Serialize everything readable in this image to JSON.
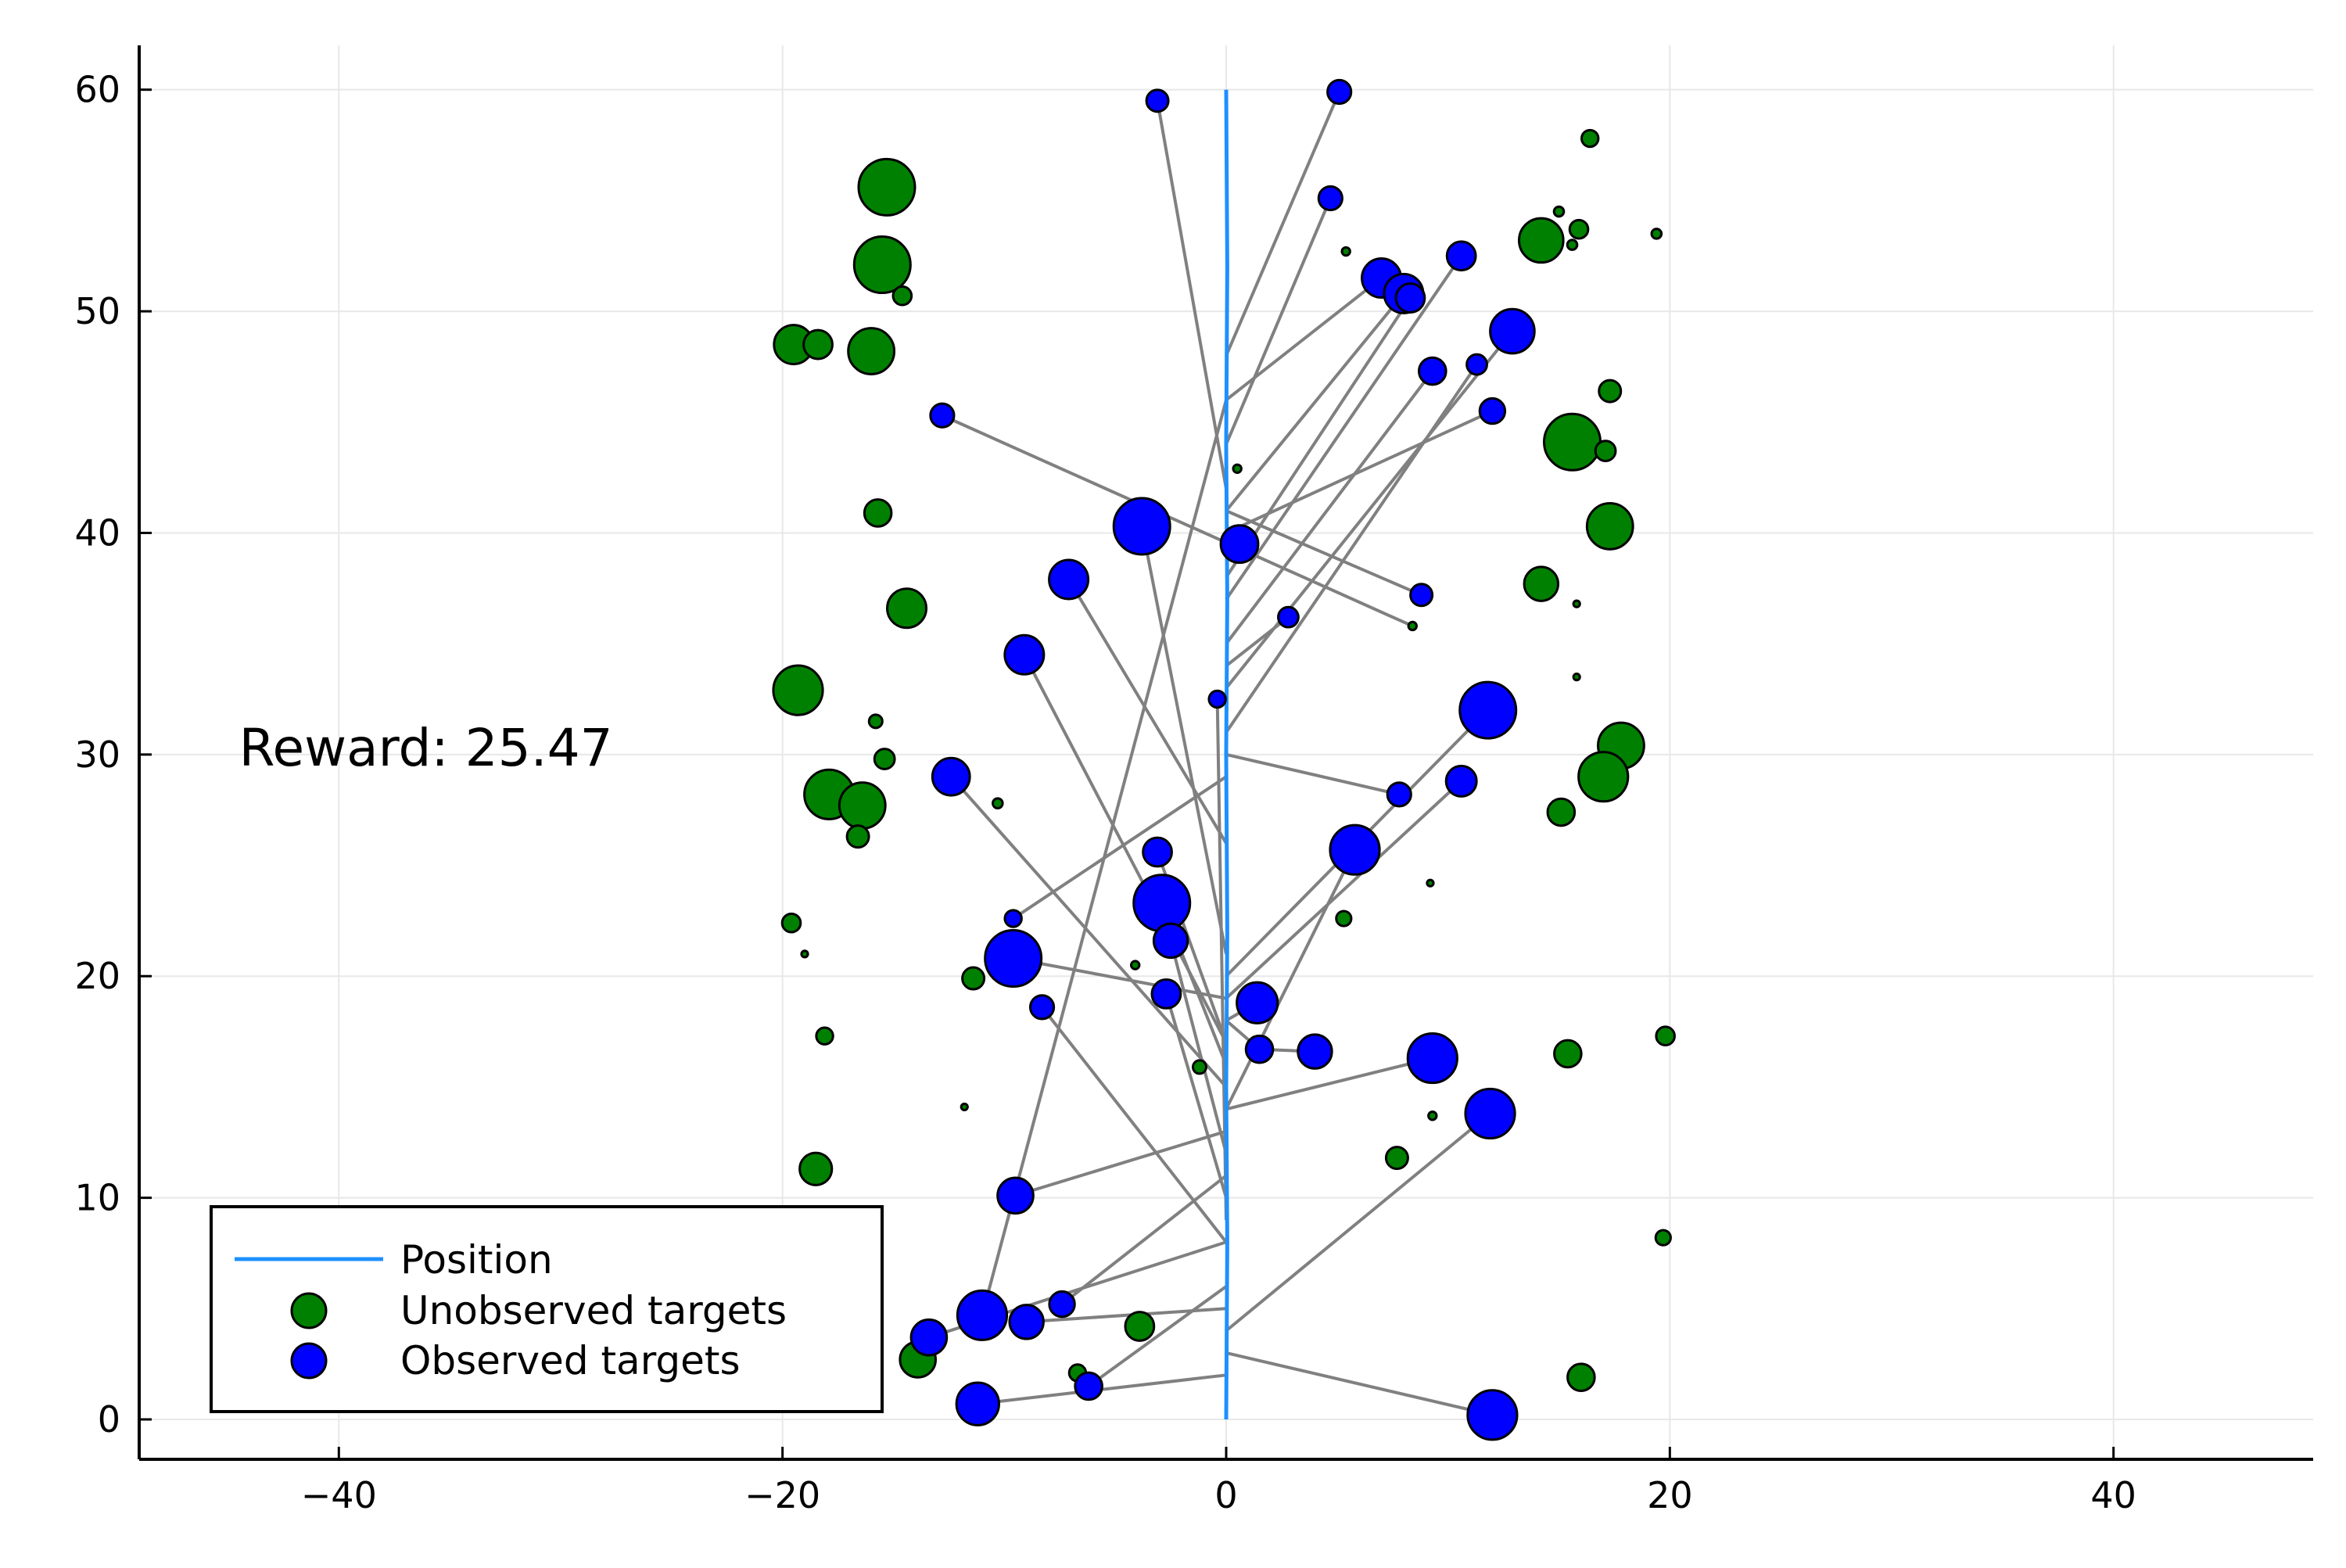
{
  "chart_data": {
    "type": "scatter",
    "title": "",
    "xlabel": "",
    "ylabel": "",
    "xlim": [
      -49,
      49
    ],
    "ylim": [
      -1.8,
      62
    ],
    "grid": true,
    "legend_placement": "bottom-left",
    "x_ticks": [
      -40,
      -20,
      0,
      20,
      40
    ],
    "x_tick_labels": [
      "−40",
      "−20",
      "0",
      "20",
      "40"
    ],
    "y_ticks": [
      0,
      10,
      20,
      30,
      40,
      50,
      60
    ],
    "y_tick_labels": [
      "0",
      "10",
      "20",
      "30",
      "40",
      "50",
      "60"
    ],
    "annotation": {
      "text": "Reward: 25.47",
      "x": -44.5,
      "y": 29.5
    },
    "colors": {
      "position": "#1e90ff",
      "unobserved": "#008000",
      "observed": "#0000ff",
      "link": "#808080",
      "grid": "#e8e8e8"
    },
    "series": [
      {
        "name": "Position",
        "kind": "line",
        "x": [
          0,
          0.05,
          0,
          0.05,
          0,
          0.05,
          0,
          0.05,
          0
        ],
        "y": [
          0,
          8,
          15,
          22,
          30,
          37,
          44,
          52,
          60
        ]
      },
      {
        "name": "Unobserved targets",
        "kind": "scatter",
        "points": [
          {
            "x": -15.3,
            "y": 55.6,
            "s": 3.0
          },
          {
            "x": -15.5,
            "y": 52.1,
            "s": 3.0
          },
          {
            "x": -14.6,
            "y": 50.7,
            "s": 0.8
          },
          {
            "x": -19.5,
            "y": 48.5,
            "s": 2.0
          },
          {
            "x": -18.4,
            "y": 48.5,
            "s": 1.4
          },
          {
            "x": -16.0,
            "y": 48.2,
            "s": 2.4
          },
          {
            "x": -15.7,
            "y": 40.9,
            "s": 1.3
          },
          {
            "x": -14.4,
            "y": 36.6,
            "s": 2.0
          },
          {
            "x": -19.3,
            "y": 32.9,
            "s": 2.6
          },
          {
            "x": -15.8,
            "y": 31.5,
            "s": 0.5
          },
          {
            "x": -15.4,
            "y": 29.8,
            "s": 0.9
          },
          {
            "x": -17.9,
            "y": 28.2,
            "s": 2.6
          },
          {
            "x": -16.4,
            "y": 27.7,
            "s": 2.4
          },
          {
            "x": -16.6,
            "y": 26.3,
            "s": 1.0
          },
          {
            "x": -10.3,
            "y": 27.8,
            "s": 0.3
          },
          {
            "x": -19.6,
            "y": 22.4,
            "s": 0.8
          },
          {
            "x": -19.0,
            "y": 21.0,
            "s": 0.1
          },
          {
            "x": -11.4,
            "y": 19.9,
            "s": 1.0
          },
          {
            "x": -18.1,
            "y": 17.3,
            "s": 0.7
          },
          {
            "x": -11.8,
            "y": 14.1,
            "s": 0.1
          },
          {
            "x": -18.5,
            "y": 11.3,
            "s": 1.6
          },
          {
            "x": -13.9,
            "y": 2.7,
            "s": 1.8
          },
          {
            "x": -6.7,
            "y": 2.1,
            "s": 0.7
          },
          {
            "x": -3.9,
            "y": 4.2,
            "s": 1.4
          },
          {
            "x": -4.1,
            "y": 20.5,
            "s": 0.2
          },
          {
            "x": -1.2,
            "y": 15.9,
            "s": 0.5
          },
          {
            "x": 0.5,
            "y": 42.9,
            "s": 0.2
          },
          {
            "x": 5.3,
            "y": 22.6,
            "s": 0.6
          },
          {
            "x": 5.4,
            "y": 52.7,
            "s": 0.2
          },
          {
            "x": 16.4,
            "y": 57.8,
            "s": 0.7
          },
          {
            "x": 15.0,
            "y": 54.5,
            "s": 0.3
          },
          {
            "x": 15.9,
            "y": 53.7,
            "s": 0.8
          },
          {
            "x": 15.6,
            "y": 53.0,
            "s": 0.3
          },
          {
            "x": 19.4,
            "y": 53.5,
            "s": 0.3
          },
          {
            "x": 14.2,
            "y": 53.2,
            "s": 2.3
          },
          {
            "x": 15.6,
            "y": 44.1,
            "s": 3.0
          },
          {
            "x": 17.1,
            "y": 43.7,
            "s": 0.9
          },
          {
            "x": 17.3,
            "y": 46.4,
            "s": 1.0
          },
          {
            "x": 17.3,
            "y": 40.3,
            "s": 2.4
          },
          {
            "x": 14.2,
            "y": 37.7,
            "s": 1.7
          },
          {
            "x": 15.8,
            "y": 36.8,
            "s": 0.1
          },
          {
            "x": 8.4,
            "y": 35.8,
            "s": 0.2
          },
          {
            "x": 15.8,
            "y": 33.5,
            "s": 0.1
          },
          {
            "x": 17.8,
            "y": 30.4,
            "s": 2.4
          },
          {
            "x": 17.0,
            "y": 29.0,
            "s": 2.6
          },
          {
            "x": 15.1,
            "y": 27.4,
            "s": 1.3
          },
          {
            "x": 9.2,
            "y": 24.2,
            "s": 0.1
          },
          {
            "x": 19.8,
            "y": 17.3,
            "s": 0.8
          },
          {
            "x": 15.4,
            "y": 16.5,
            "s": 1.3
          },
          {
            "x": 9.3,
            "y": 13.7,
            "s": 0.2
          },
          {
            "x": 7.7,
            "y": 11.8,
            "s": 1.0
          },
          {
            "x": 19.7,
            "y": 8.2,
            "s": 0.6
          },
          {
            "x": 16.0,
            "y": 1.9,
            "s": 1.3
          }
        ]
      },
      {
        "name": "Observed targets",
        "kind": "scatter",
        "points": [
          {
            "x": -3.1,
            "y": 59.5,
            "s": 1.0,
            "lx": 0,
            "ly": 42
          },
          {
            "x": 5.1,
            "y": 59.9,
            "s": 1.1,
            "lx": 0,
            "ly": 48
          },
          {
            "x": 4.7,
            "y": 55.1,
            "s": 1.1,
            "lx": 0,
            "ly": 44
          },
          {
            "x": 7.0,
            "y": 51.5,
            "s": 2.0,
            "lx": 0,
            "ly": 46
          },
          {
            "x": 8.0,
            "y": 50.8,
            "s": 2.0,
            "lx": 0,
            "ly": 41
          },
          {
            "x": 8.3,
            "y": 50.6,
            "s": 1.4,
            "lx": 0,
            "ly": 38
          },
          {
            "x": 10.6,
            "y": 52.5,
            "s": 1.4,
            "lx": 0,
            "ly": 37
          },
          {
            "x": 12.9,
            "y": 49.1,
            "s": 2.3,
            "lx": 0,
            "ly": 33
          },
          {
            "x": 9.3,
            "y": 47.3,
            "s": 1.3,
            "lx": 0,
            "ly": 35
          },
          {
            "x": 11.3,
            "y": 47.6,
            "s": 0.9,
            "lx": 0,
            "ly": 31
          },
          {
            "x": 12.0,
            "y": 45.5,
            "s": 1.2,
            "lx": 0,
            "ly": 40
          },
          {
            "x": -12.8,
            "y": 45.3,
            "s": 1.1,
            "lx": 8.4,
            "ly": 35.8
          },
          {
            "x": -3.8,
            "y": 40.3,
            "s": 3.0,
            "lx": 0,
            "ly": 21
          },
          {
            "x": 0.6,
            "y": 39.5,
            "s": 1.9,
            "lx": 0,
            "ly": 39
          },
          {
            "x": -7.1,
            "y": 37.9,
            "s": 2.0,
            "lx": 0,
            "ly": 26
          },
          {
            "x": 2.8,
            "y": 36.2,
            "s": 0.9,
            "lx": 0,
            "ly": 34
          },
          {
            "x": 8.8,
            "y": 37.2,
            "s": 1.0,
            "lx": 0,
            "ly": 41
          },
          {
            "x": -9.1,
            "y": 34.5,
            "s": 2.0,
            "lx": 0,
            "ly": 17
          },
          {
            "x": -12.4,
            "y": 29.0,
            "s": 1.9,
            "lx": 0,
            "ly": 15
          },
          {
            "x": -0.4,
            "y": 32.5,
            "s": 0.7,
            "lx": 0,
            "ly": 9
          },
          {
            "x": 11.8,
            "y": 32.0,
            "s": 3.0,
            "lx": 0,
            "ly": 20
          },
          {
            "x": 7.8,
            "y": 28.2,
            "s": 1.1,
            "lx": 0,
            "ly": 30
          },
          {
            "x": 10.6,
            "y": 28.8,
            "s": 1.5,
            "lx": 0,
            "ly": 19
          },
          {
            "x": -3.1,
            "y": 25.6,
            "s": 1.4,
            "lx": 0,
            "ly": 17
          },
          {
            "x": 5.8,
            "y": 25.7,
            "s": 2.6,
            "lx": 0,
            "ly": 14
          },
          {
            "x": -2.9,
            "y": 23.3,
            "s": 3.0,
            "lx": 0,
            "ly": 16
          },
          {
            "x": -9.6,
            "y": 22.6,
            "s": 0.7,
            "lx": 0,
            "ly": 29
          },
          {
            "x": -2.5,
            "y": 21.6,
            "s": 1.7,
            "lx": 0,
            "ly": 12
          },
          {
            "x": -9.6,
            "y": 20.8,
            "s": 3.0,
            "lx": 0,
            "ly": 19
          },
          {
            "x": -2.7,
            "y": 19.2,
            "s": 1.4,
            "lx": 0,
            "ly": 10
          },
          {
            "x": -8.3,
            "y": 18.6,
            "s": 1.1,
            "lx": 0,
            "ly": 8
          },
          {
            "x": 1.4,
            "y": 18.8,
            "s": 2.1,
            "lx": 0,
            "ly": 18
          },
          {
            "x": 1.5,
            "y": 16.7,
            "s": 1.3,
            "lx": 0,
            "ly": 18
          },
          {
            "x": 4.0,
            "y": 16.6,
            "s": 1.7,
            "lx": 1.5,
            "ly": 16.7
          },
          {
            "x": 9.3,
            "y": 16.3,
            "s": 2.6,
            "lx": 0,
            "ly": 14
          },
          {
            "x": 11.9,
            "y": 13.8,
            "s": 2.6,
            "lx": 0,
            "ly": 4
          },
          {
            "x": -9.5,
            "y": 10.1,
            "s": 1.8,
            "lx": 0,
            "ly": 13
          },
          {
            "x": -7.4,
            "y": 5.2,
            "s": 1.2,
            "lx": 0,
            "ly": 11
          },
          {
            "x": -11.0,
            "y": 4.7,
            "s": 2.6,
            "lx": 0,
            "ly": 46
          },
          {
            "x": -13.4,
            "y": 3.7,
            "s": 1.8,
            "lx": 0,
            "ly": 8
          },
          {
            "x": -9.0,
            "y": 4.4,
            "s": 1.7,
            "lx": 0,
            "ly": 5
          },
          {
            "x": -6.2,
            "y": 1.5,
            "s": 1.3,
            "lx": 0,
            "ly": 6
          },
          {
            "x": -11.2,
            "y": 0.7,
            "s": 2.2,
            "lx": 0,
            "ly": 2
          },
          {
            "x": 12.0,
            "y": 0.2,
            "s": 2.6,
            "lx": 0,
            "ly": 3
          }
        ]
      }
    ]
  },
  "legend": {
    "items": [
      {
        "label": "Position"
      },
      {
        "label": "Unobserved targets"
      },
      {
        "label": "Observed targets"
      }
    ]
  }
}
